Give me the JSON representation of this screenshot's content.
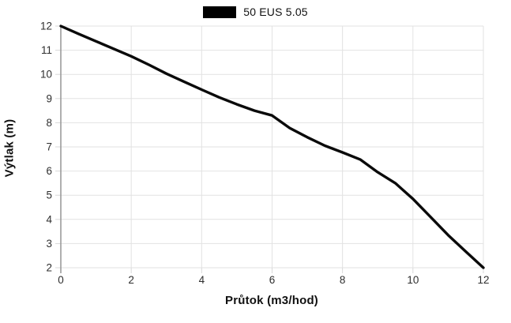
{
  "colors": {
    "background": "#ffffff",
    "gridline": "#e2e2e2",
    "axis_line": "#9b9b9b",
    "tick_mark": "#d9d9d9",
    "tick_label": "#2e2e2e",
    "series_line": "#0a0a0a",
    "legend_swatch": "#000000"
  },
  "chart_data": {
    "type": "line",
    "xlabel": "Průtok (m3/hod)",
    "ylabel": "Výtlak (m)",
    "xlim": [
      0,
      12
    ],
    "ylim": [
      2,
      12
    ],
    "x_ticks": [
      0,
      2,
      4,
      6,
      8,
      10,
      12
    ],
    "y_ticks": [
      2,
      3,
      4,
      5,
      6,
      7,
      8,
      9,
      10,
      11,
      12
    ],
    "grid": true,
    "legend_position": "top-center",
    "series": [
      {
        "name": "50 EUS 5.05",
        "color": "#0a0a0a",
        "points": [
          [
            0,
            12.0
          ],
          [
            0.5,
            11.68
          ],
          [
            1,
            11.37
          ],
          [
            1.5,
            11.06
          ],
          [
            2,
            10.75
          ],
          [
            2.5,
            10.4
          ],
          [
            3,
            10.03
          ],
          [
            3.5,
            9.7
          ],
          [
            4,
            9.37
          ],
          [
            4.5,
            9.05
          ],
          [
            5,
            8.76
          ],
          [
            5.5,
            8.5
          ],
          [
            6,
            8.3
          ],
          [
            6.5,
            7.78
          ],
          [
            7,
            7.4
          ],
          [
            7.5,
            7.05
          ],
          [
            8,
            6.77
          ],
          [
            8.5,
            6.48
          ],
          [
            9,
            5.95
          ],
          [
            9.5,
            5.5
          ],
          [
            10,
            4.85
          ],
          [
            10.5,
            4.1
          ],
          [
            11,
            3.35
          ],
          [
            11.5,
            2.67
          ],
          [
            12,
            2.0
          ]
        ]
      }
    ]
  }
}
